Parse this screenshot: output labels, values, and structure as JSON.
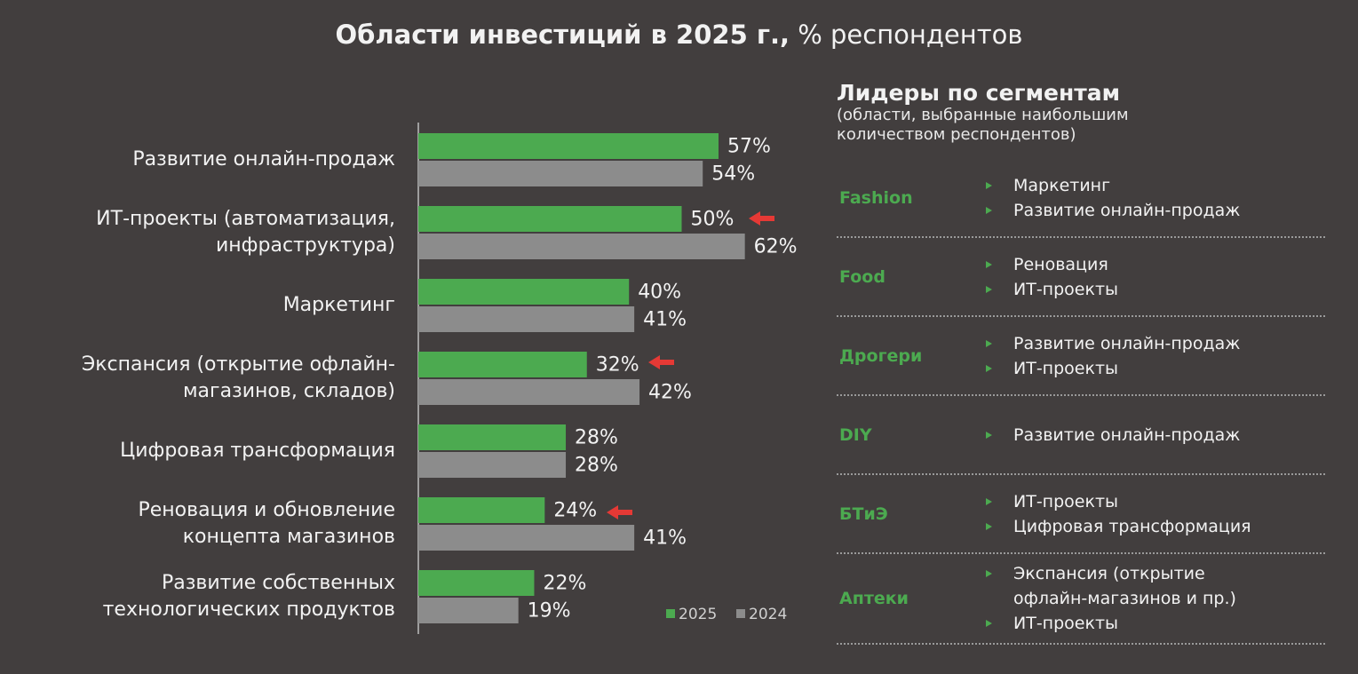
{
  "chart_data": {
    "type": "hbar",
    "title": "Области инвестиций в 2025 г.,",
    "title_unit": "% респондентов",
    "categories": [
      "Развитие онлайн-продаж",
      "ИТ-проекты (автоматизация,\nинфраструктура)",
      "Маркетинг",
      "Экспансия (открытие офлайн-\nмагазинов, складов)",
      "Цифровая трансформация",
      "Реновация и обновление\nконцепта магазинов",
      "Развитие собственных\nтехнологических продуктов"
    ],
    "series": [
      {
        "name": "2025",
        "color": "#4caa50",
        "values": [
          57,
          50,
          40,
          32,
          28,
          24,
          22
        ],
        "value_labels": [
          "57%",
          "50%",
          "40%",
          "32%",
          "28%",
          "24%",
          "22%"
        ]
      },
      {
        "name": "2024",
        "color": "#8c8c8c",
        "values": [
          54,
          62,
          41,
          42,
          28,
          41,
          19
        ],
        "value_labels": [
          "54%",
          "62%",
          "41%",
          "42%",
          "28%",
          "41%",
          "19%"
        ]
      }
    ]
  },
  "panel": {
    "title": "Лидеры по сегментам",
    "subtitle": "(области, выбранные наибольшим\nколичеством респондентов)",
    "segments": [
      {
        "name": "Fashion",
        "items": [
          "Маркетинг",
          "Развитие онлайн-продаж"
        ]
      },
      {
        "name": "Food",
        "items": [
          "Реновация",
          "ИТ-проекты"
        ]
      },
      {
        "name": "Дрогери",
        "items": [
          "Развитие онлайн-продаж",
          "ИТ-проекты"
        ]
      },
      {
        "name": "DIY",
        "items": [
          "Развитие онлайн-продаж"
        ]
      },
      {
        "name": "БТиЭ",
        "items": [
          "ИТ-проекты",
          "Цифровая трансформация"
        ]
      },
      {
        "name": "Аптеки",
        "items": [
          "Экспансия (открытие\nофлайн-магазинов и пр.)",
          "ИТ-проекты"
        ]
      }
    ]
  }
}
